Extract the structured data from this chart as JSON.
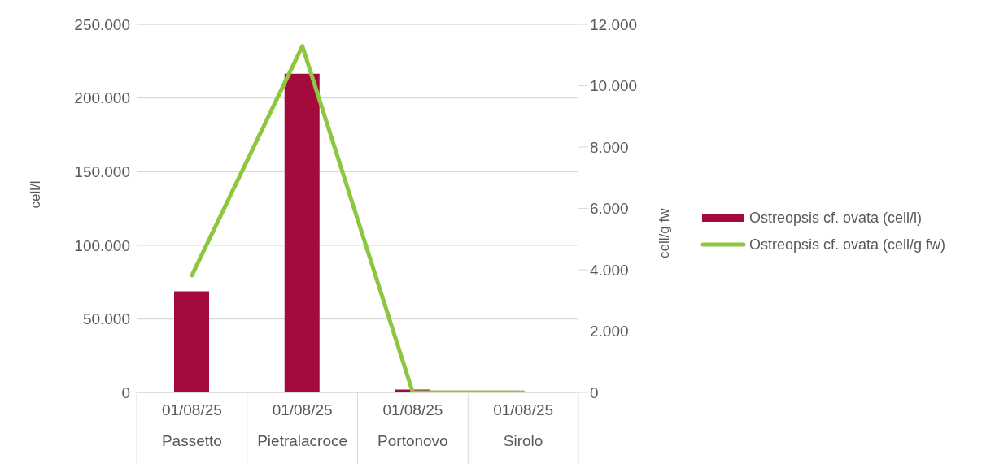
{
  "chart_data": {
    "type": "bar",
    "categories": [
      "01/08/25\nPassetto",
      "01/08/25\nPietralacroce",
      "01/08/25\nPortonovo",
      "01/08/25\nSirolo"
    ],
    "ylabel": "cell/l",
    "y2label": "cell/g fw",
    "series": [
      {
        "name": "Ostreopsis cf. ovata (cell/l)",
        "color": "#a50a3c",
        "values": [
          68700,
          216500,
          2000,
          0
        ]
      },
      {
        "name": "Ostreopsis cf. ovata (cell/g fw)",
        "type": "line",
        "axis": "y2",
        "color": "#8dc63f",
        "values": [
          3820,
          11290,
          0,
          0
        ]
      }
    ],
    "ylim": [
      0,
      250000
    ],
    "yticks": [
      {
        "value": 0,
        "label": "0"
      },
      {
        "value": 50000,
        "label": "50.000"
      },
      {
        "value": 100000,
        "label": "100.000"
      },
      {
        "value": 150000,
        "label": "150.000"
      },
      {
        "value": 200000,
        "label": "200.000"
      },
      {
        "value": 250000,
        "label": "250.000"
      }
    ],
    "y2lim": [
      0,
      12000
    ],
    "y2ticks": [
      {
        "value": 0,
        "label": "0"
      },
      {
        "value": 2000,
        "label": "2.000"
      },
      {
        "value": 4000,
        "label": "4.000"
      },
      {
        "value": 6000,
        "label": "6.000"
      },
      {
        "value": 8000,
        "label": "8.000"
      },
      {
        "value": 10000,
        "label": "10.000"
      },
      {
        "value": 12000,
        "label": "12.000"
      }
    ],
    "grid": "y",
    "legend": "right",
    "marker": "none"
  }
}
